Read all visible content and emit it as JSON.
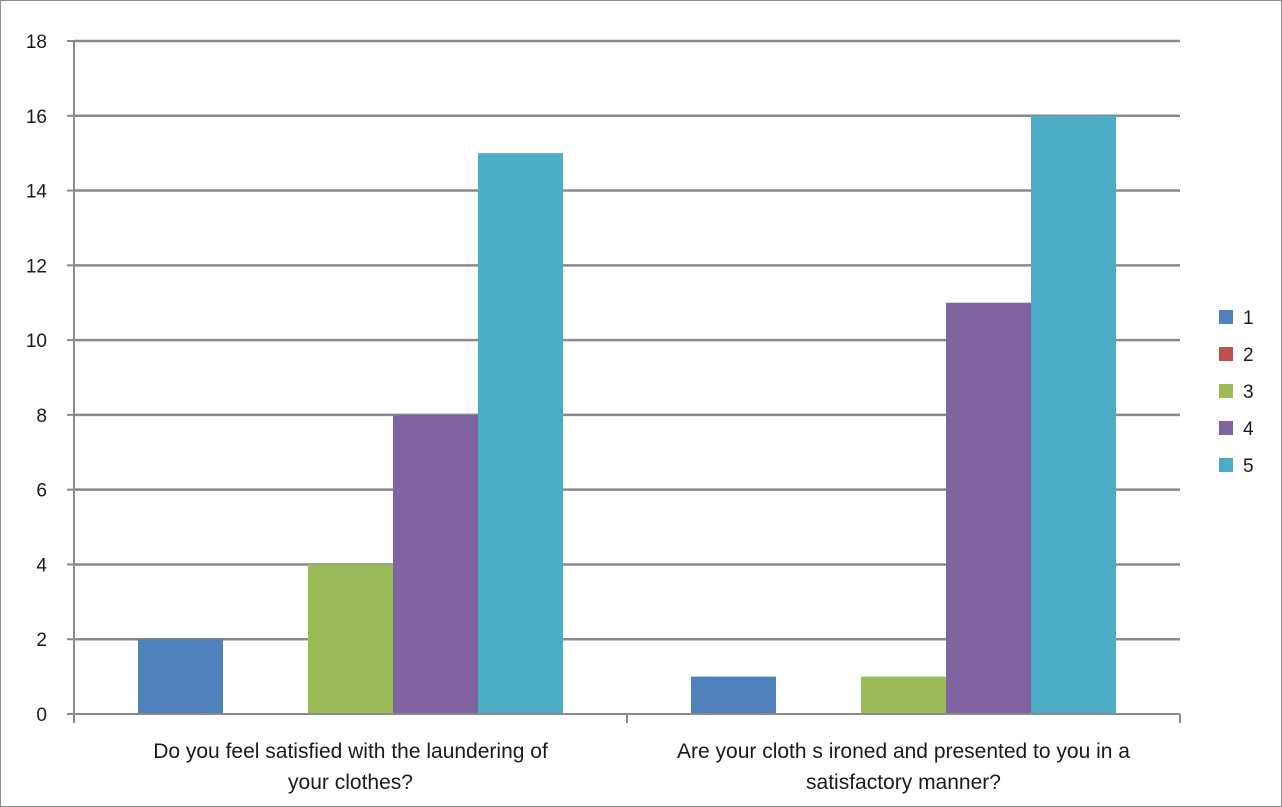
{
  "chart_data": {
    "type": "bar",
    "categories": [
      [
        "Do  you feel satisfied with the laundering of",
        "your clothes?"
      ],
      [
        "Are your cloth s ironed and presented to you in a",
        "satisfactory manner?"
      ]
    ],
    "series": [
      {
        "name": "1",
        "color": "#4F81BD",
        "values": [
          2,
          1
        ]
      },
      {
        "name": "2",
        "color": "#C0504D",
        "values": [
          0,
          0
        ]
      },
      {
        "name": "3",
        "color": "#9BBB59",
        "values": [
          4,
          1
        ]
      },
      {
        "name": "4",
        "color": "#8064A2",
        "values": [
          8,
          11
        ]
      },
      {
        "name": "5",
        "color": "#4BACC6",
        "values": [
          15,
          16
        ]
      }
    ],
    "ylim": [
      0,
      18
    ],
    "yticks": [
      0,
      2,
      4,
      6,
      8,
      10,
      12,
      14,
      16,
      18
    ],
    "grid": true,
    "legend_position": "right"
  }
}
